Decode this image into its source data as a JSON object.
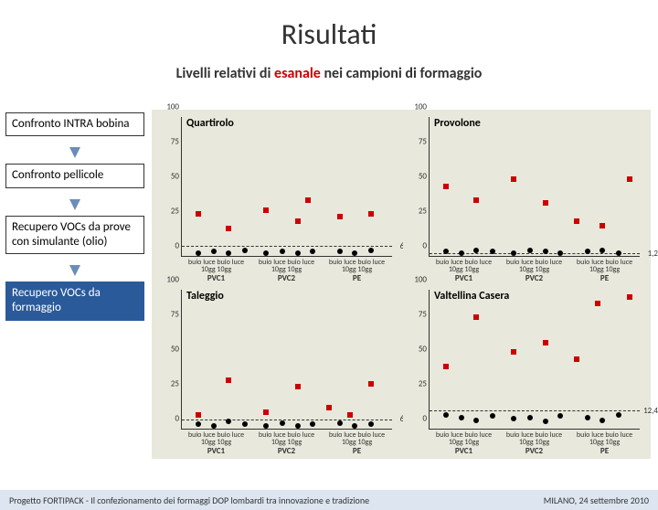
{
  "title": "Risultati",
  "subtitle_pre": "Livelli relativi di ",
  "subtitle_hl": "esanale",
  "subtitle_post": " nei campioni di formaggio",
  "sidebar": {
    "items": [
      {
        "label": "Confronto INTRA bobina",
        "active": false
      },
      {
        "label": "Confronto pellicole",
        "active": false
      },
      {
        "label": "Recupero VOCs da prove con simulante (olio)",
        "active": false
      },
      {
        "label": "Recupero VOCs da formaggio",
        "active": true
      }
    ]
  },
  "chart_config": {
    "ylim": [
      0,
      100
    ],
    "yticks": [
      0,
      25,
      50,
      75,
      100
    ],
    "bg": "#e8e8dc",
    "series_sq_color": "#c00",
    "series_ci_color": "#000",
    "x_groups": [
      "PVC1",
      "PVC2",
      "PE"
    ],
    "x_sub": [
      "buio luce\n10gg",
      "buio luce\n10gg",
      "buio luce\n10gg"
    ],
    "x_sub_line1": "buio luce",
    "x_sub_line2": "10gg"
  },
  "panels": [
    {
      "title": "Quartirolo",
      "dashed_y": 6.5,
      "dashed_label": "6,5",
      "sq": [
        [
          8,
          30
        ],
        [
          22,
          20
        ],
        [
          40,
          33
        ],
        [
          55,
          25
        ],
        [
          60,
          40
        ],
        [
          75,
          28
        ],
        [
          90,
          30
        ]
      ],
      "ci": [
        [
          8,
          2
        ],
        [
          15,
          3
        ],
        [
          22,
          2
        ],
        [
          30,
          4
        ],
        [
          40,
          2
        ],
        [
          48,
          3
        ],
        [
          55,
          2
        ],
        [
          62,
          3
        ],
        [
          75,
          3
        ],
        [
          82,
          2
        ],
        [
          90,
          4
        ]
      ]
    },
    {
      "title": "Provolone",
      "dashed_y": 1.2,
      "dashed_label": "1,2",
      "sq": [
        [
          8,
          50
        ],
        [
          22,
          40
        ],
        [
          40,
          55
        ],
        [
          55,
          38
        ],
        [
          70,
          25
        ],
        [
          82,
          22
        ],
        [
          95,
          55
        ]
      ],
      "ci": [
        [
          8,
          3
        ],
        [
          15,
          2
        ],
        [
          22,
          4
        ],
        [
          30,
          3
        ],
        [
          40,
          2
        ],
        [
          48,
          4
        ],
        [
          55,
          3
        ],
        [
          62,
          2
        ],
        [
          75,
          3
        ],
        [
          82,
          4
        ],
        [
          90,
          2
        ]
      ]
    },
    {
      "title": "Taleggio",
      "dashed_y": 6.1,
      "dashed_label": "6,1",
      "sq": [
        [
          8,
          10
        ],
        [
          22,
          35
        ],
        [
          40,
          12
        ],
        [
          55,
          30
        ],
        [
          70,
          15
        ],
        [
          80,
          10
        ],
        [
          90,
          32
        ]
      ],
      "ci": [
        [
          8,
          3
        ],
        [
          15,
          2
        ],
        [
          22,
          5
        ],
        [
          30,
          3
        ],
        [
          40,
          2
        ],
        [
          48,
          4
        ],
        [
          55,
          2
        ],
        [
          62,
          3
        ],
        [
          75,
          4
        ],
        [
          82,
          2
        ],
        [
          90,
          3
        ]
      ]
    },
    {
      "title": "Valtellina Casera",
      "dashed_y": 12.4,
      "dashed_label": "12,4",
      "sq": [
        [
          8,
          45
        ],
        [
          22,
          80
        ],
        [
          40,
          55
        ],
        [
          55,
          62
        ],
        [
          70,
          50
        ],
        [
          80,
          90
        ],
        [
          95,
          95
        ]
      ],
      "ci": [
        [
          8,
          10
        ],
        [
          15,
          8
        ],
        [
          22,
          6
        ],
        [
          30,
          9
        ],
        [
          40,
          7
        ],
        [
          48,
          8
        ],
        [
          55,
          5
        ],
        [
          62,
          9
        ],
        [
          75,
          8
        ],
        [
          82,
          6
        ],
        [
          90,
          10
        ]
      ]
    }
  ],
  "footer": {
    "left": "Progetto FORTIPACK - Il confezionamento dei formaggi DOP lombardi tra innovazione e tradizione",
    "right": "MILANO, 24 settembre 2010"
  }
}
